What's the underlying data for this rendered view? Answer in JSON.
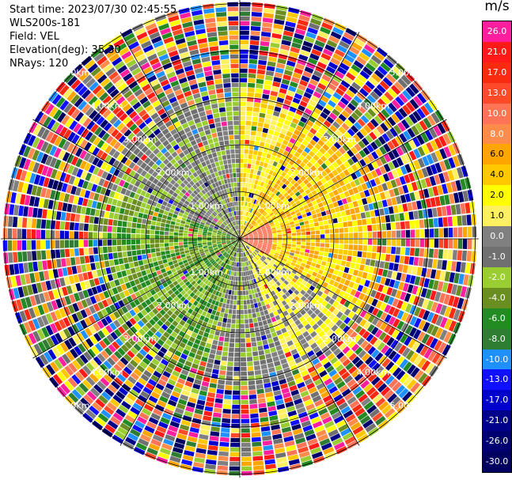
{
  "header": {
    "start_time": "Start time: 2023/07/30 02:45:55",
    "device": "WLS200s-181",
    "field": "Field: VEL",
    "elevation": "Elevation(deg): 35.30",
    "nrays": "NRays: 120"
  },
  "colorbar": {
    "unit": "m/s",
    "levels": [
      "26.0",
      "21.0",
      "17.0",
      "13.0",
      "10.0",
      "8.0",
      "6.0",
      "4.0",
      "2.0",
      "1.0",
      "0.0",
      "-1.0",
      "-2.0",
      "-4.0",
      "-6.0",
      "-8.0",
      "-10.0",
      "-13.0",
      "-17.0",
      "-21.0",
      "-26.0",
      "-30.0"
    ],
    "colors": [
      "#ff1f9e",
      "#ff1a1a",
      "#f82a10",
      "#ff4a2a",
      "#ff7357",
      "#ff8c4a",
      "#ffa500",
      "#ffc800",
      "#ffff00",
      "#fff060",
      "#808080",
      "#707070",
      "#9acd32",
      "#6b8e23",
      "#228b22",
      "#2e7d32",
      "#1e90ff",
      "#1010ff",
      "#0000cd",
      "#00008b",
      "#000070",
      "#000060"
    ]
  },
  "ranges": [
    "1.00km",
    "2.00km",
    "3.00km",
    "4.00km",
    "5.00km"
  ]
}
